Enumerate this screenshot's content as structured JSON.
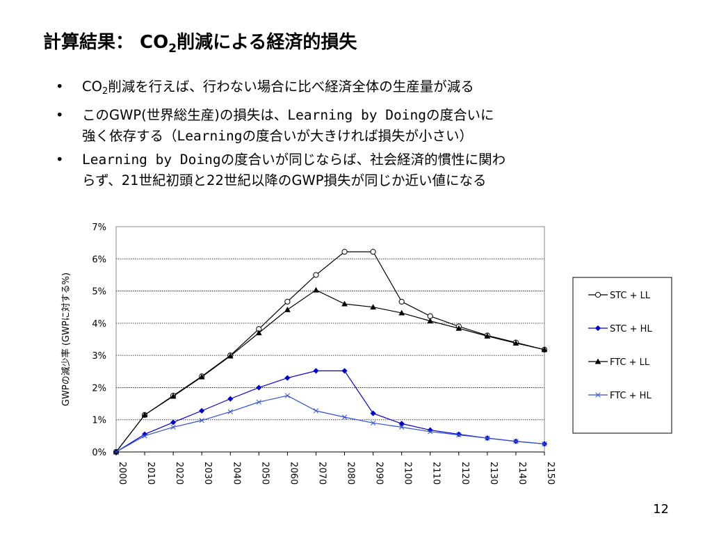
{
  "slide": {
    "title_prefix": "計算結果： CO",
    "title_sub": "2",
    "title_suffix": "削減による経済的損失",
    "page_number": "12"
  },
  "bullets": [
    {
      "lines": [
        {
          "parts": [
            {
              "t": "CO"
            },
            {
              "t": "2",
              "sub": true
            },
            {
              "t": "削減を行えば、行わない場合に比べ経済全体の生産量が減る"
            }
          ]
        }
      ]
    },
    {
      "lines": [
        {
          "parts": [
            {
              "t": "このGWP(世界総生産)の損失は、"
            },
            {
              "t": "Learning by Doing",
              "mono": true
            },
            {
              "t": "の度合いに"
            }
          ]
        },
        {
          "parts": [
            {
              "t": "強く依存する（"
            },
            {
              "t": "Learning",
              "mono": true
            },
            {
              "t": "の度合いが大きければ損失が小さい）"
            }
          ]
        }
      ]
    },
    {
      "lines": [
        {
          "parts": [
            {
              "t": "Learning by Doing",
              "mono": true
            },
            {
              "t": "の度合いが同じならば、社会経済的慣性に関わ"
            }
          ]
        },
        {
          "parts": [
            {
              "t": "らず、21世紀初頭と22世紀以降のGWP損失が同じか近い値になる"
            }
          ]
        }
      ]
    }
  ],
  "chart_data": {
    "type": "line",
    "ylabel": "GWPの減少率 (GWPに対する%)",
    "xlabel": "",
    "x": [
      2000,
      2010,
      2020,
      2030,
      2040,
      2050,
      2060,
      2070,
      2080,
      2090,
      2100,
      2110,
      2120,
      2130,
      2140,
      2150
    ],
    "ylim": [
      0,
      7
    ],
    "yticks": [
      "0%",
      "1%",
      "2%",
      "3%",
      "4%",
      "5%",
      "6%",
      "7%"
    ],
    "grid": true,
    "legend_position": "right",
    "series": [
      {
        "name": "STC + LL",
        "color": "#000000",
        "marker": "open-circle",
        "values": [
          0,
          1.15,
          1.75,
          2.35,
          3.0,
          3.82,
          4.67,
          5.5,
          6.22,
          6.22,
          4.67,
          4.22,
          3.9,
          3.62,
          3.4,
          3.18
        ]
      },
      {
        "name": "STC + HL",
        "color": "#0000cc",
        "marker": "diamond",
        "values": [
          0,
          0.55,
          0.92,
          1.28,
          1.65,
          2.0,
          2.3,
          2.52,
          2.52,
          1.2,
          0.88,
          0.68,
          0.55,
          0.43,
          0.33,
          0.25
        ]
      },
      {
        "name": "FTC + LL",
        "color": "#000000",
        "marker": "triangle",
        "values": [
          0,
          1.15,
          1.73,
          2.33,
          2.98,
          3.7,
          4.42,
          5.03,
          4.6,
          4.5,
          4.32,
          4.07,
          3.84,
          3.6,
          3.38,
          3.18
        ]
      },
      {
        "name": "FTC + HL",
        "color": "#2f4fd6",
        "marker": "x",
        "values": [
          0,
          0.5,
          0.77,
          0.98,
          1.25,
          1.55,
          1.75,
          1.28,
          1.08,
          0.9,
          0.77,
          0.63,
          0.53,
          0.43,
          0.33,
          0.25
        ]
      }
    ]
  }
}
